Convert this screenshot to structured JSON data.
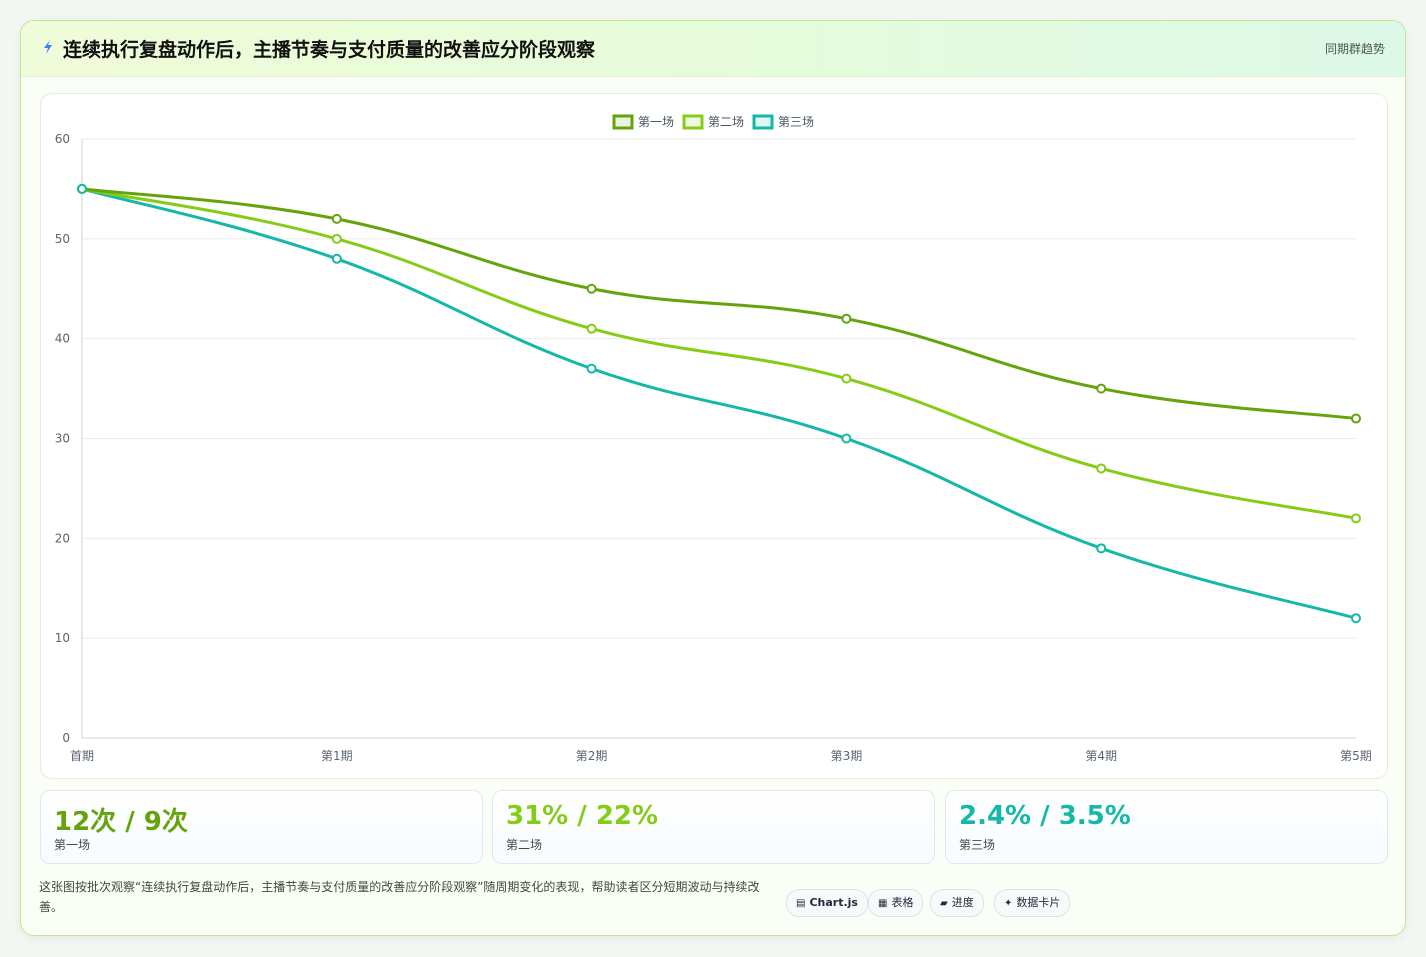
{
  "header": {
    "title": "连续执行复盘动作后，主播节奏与支付质量的改善应分阶段观察",
    "tag": "同期群趋势"
  },
  "chart_data": {
    "type": "line",
    "title": "",
    "xlabel": "",
    "ylabel": "",
    "categories": [
      "首期",
      "第1期",
      "第2期",
      "第3期",
      "第4期",
      "第5期"
    ],
    "series": [
      {
        "name": "第一场",
        "values": [
          55,
          52,
          45,
          42,
          35,
          32
        ],
        "color": "#65a30d"
      },
      {
        "name": "第二场",
        "values": [
          55,
          50,
          41,
          36,
          27,
          22
        ],
        "color": "#84cc16"
      },
      {
        "name": "第三场",
        "values": [
          55,
          48,
          37,
          30,
          19,
          12
        ],
        "color": "#14b8a6"
      }
    ],
    "ylim": [
      0,
      60
    ],
    "yticks": [
      0,
      10,
      20,
      30,
      40,
      50,
      60
    ],
    "grid": true,
    "legend": "top-center"
  },
  "kpis": [
    {
      "value": "12次 / 9次",
      "label": "第一场",
      "color": "#65a30d"
    },
    {
      "value": "31% / 22%",
      "label": "第二场",
      "color": "#84cc16"
    },
    {
      "value": "2.4% / 3.5%",
      "label": "第三场",
      "color": "#14b8a6"
    }
  ],
  "description": "这张图按批次观察“连续执行复盘动作后，主播节奏与支付质量的改善应分阶段观察”随周期变化的表现，帮助读者区分短期波动与持续改善。",
  "chips": [
    {
      "icon": "▤",
      "label": "Chart.js",
      "icon_name": "chart-icon"
    },
    {
      "icon": "▦",
      "label": "表格",
      "icon_name": "table-icon"
    },
    {
      "icon": "▰",
      "label": "进度",
      "icon_name": "progress-icon"
    },
    {
      "icon": "✦",
      "label": "数据卡片",
      "icon_name": "sparkle-icon"
    }
  ]
}
